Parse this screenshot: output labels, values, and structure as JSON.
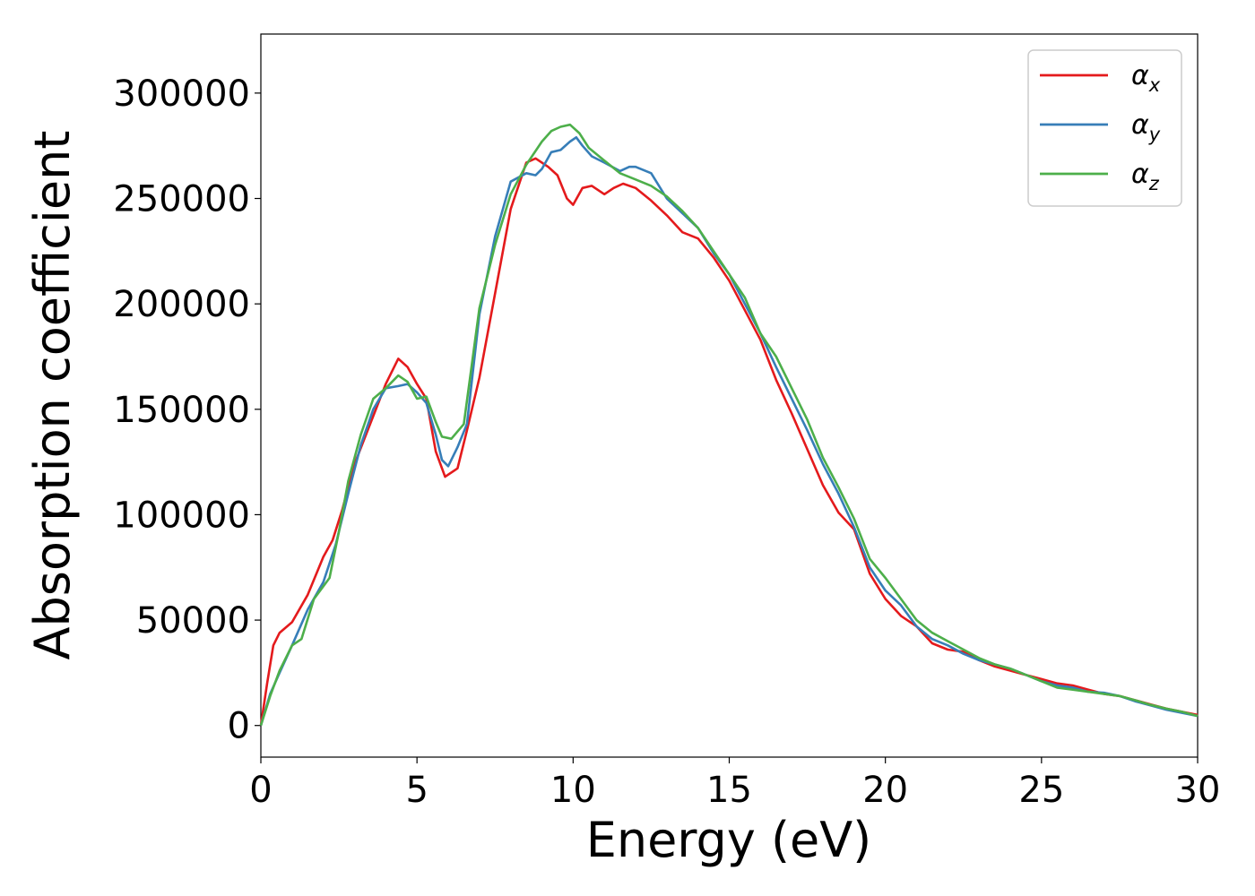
{
  "chart_data": {
    "type": "line",
    "xlabel": "Energy (eV)",
    "ylabel": "Absorption coefficient",
    "xlim": [
      0,
      30
    ],
    "ylim": [
      -15000,
      328000
    ],
    "xticks": [
      0,
      5,
      10,
      15,
      20,
      25,
      30
    ],
    "yticks": [
      0,
      50000,
      100000,
      150000,
      200000,
      250000,
      300000
    ],
    "grid": false,
    "legend_position": "top-right",
    "series": [
      {
        "name": "α",
        "subscript": "x",
        "color": "#e41a1c",
        "x": [
          0,
          0.2,
          0.4,
          0.6,
          1.0,
          1.5,
          2.0,
          2.3,
          2.6,
          3.0,
          3.5,
          4.0,
          4.4,
          4.7,
          5.0,
          5.3,
          5.6,
          5.9,
          6.3,
          6.6,
          7.0,
          7.5,
          8.0,
          8.5,
          8.8,
          9.2,
          9.5,
          9.8,
          10.0,
          10.3,
          10.6,
          11.0,
          11.3,
          11.6,
          12.0,
          12.5,
          13.0,
          13.5,
          14.0,
          14.5,
          15.0,
          15.5,
          16.0,
          16.5,
          17.0,
          17.5,
          18.0,
          18.5,
          19.0,
          19.5,
          20.0,
          20.5,
          21.0,
          21.5,
          22.0,
          22.5,
          23.0,
          23.5,
          24.0,
          24.5,
          25.0,
          25.5,
          26.0,
          26.5,
          27.0,
          27.5,
          28.0,
          28.5,
          29.0,
          29.5,
          30.0
        ],
        "y": [
          0,
          20000,
          38000,
          44000,
          49000,
          62000,
          80000,
          88000,
          102000,
          124000,
          143000,
          162000,
          174000,
          170000,
          162000,
          155000,
          130000,
          118000,
          122000,
          140000,
          165000,
          205000,
          245000,
          267000,
          269000,
          265000,
          261000,
          250000,
          247000,
          255000,
          256000,
          252000,
          255000,
          257000,
          255000,
          249000,
          242000,
          234000,
          231000,
          222000,
          211000,
          197000,
          183000,
          164000,
          148000,
          131000,
          114000,
          101000,
          93000,
          72000,
          60000,
          52000,
          47000,
          39000,
          36000,
          35000,
          31000,
          28000,
          26000,
          24000,
          22000,
          20000,
          19000,
          17000,
          15000,
          14000,
          12000,
          10000,
          8000,
          6500,
          5000
        ]
      },
      {
        "name": "α",
        "subscript": "y",
        "color": "#377eb8",
        "x": [
          0,
          0.3,
          0.6,
          1.0,
          1.5,
          2.0,
          2.4,
          2.8,
          3.2,
          3.6,
          4.0,
          4.4,
          4.7,
          5.0,
          5.3,
          5.6,
          5.8,
          6.0,
          6.3,
          6.6,
          7.0,
          7.5,
          8.0,
          8.5,
          8.8,
          9.0,
          9.3,
          9.6,
          9.9,
          10.1,
          10.3,
          10.6,
          11.0,
          11.5,
          11.8,
          12.0,
          12.5,
          13.0,
          13.5,
          14.0,
          14.5,
          15.0,
          15.5,
          16.0,
          16.5,
          17.0,
          17.5,
          18.0,
          18.5,
          19.0,
          19.5,
          20.0,
          20.5,
          21.0,
          21.5,
          22.0,
          22.5,
          23.0,
          23.5,
          24.0,
          24.5,
          25.0,
          25.5,
          26.0,
          26.5,
          27.0,
          27.5,
          28.0,
          28.5,
          29.0,
          29.5,
          30.0
        ],
        "y": [
          0,
          15000,
          25000,
          38000,
          55000,
          68000,
          86000,
          110000,
          133000,
          150000,
          160000,
          161000,
          162000,
          158000,
          153000,
          138000,
          126000,
          123000,
          132000,
          143000,
          195000,
          232000,
          258000,
          262000,
          261000,
          264000,
          272000,
          273000,
          277000,
          279000,
          275000,
          270000,
          267000,
          263000,
          265000,
          265000,
          262000,
          250000,
          243000,
          236000,
          224000,
          214000,
          200000,
          186000,
          170000,
          155000,
          140000,
          124000,
          110000,
          94000,
          75000,
          64000,
          57000,
          47000,
          41000,
          38000,
          34000,
          31000,
          29000,
          27000,
          24000,
          21000,
          19000,
          18000,
          16000,
          15500,
          14000,
          11500,
          9500,
          7500,
          6000,
          4500
        ]
      },
      {
        "name": "α",
        "subscript": "z",
        "color": "#4daf4a",
        "x": [
          0,
          0.3,
          0.6,
          1.0,
          1.3,
          1.7,
          2.0,
          2.2,
          2.5,
          2.8,
          3.2,
          3.6,
          4.0,
          4.4,
          4.7,
          5.0,
          5.3,
          5.6,
          5.8,
          6.1,
          6.5,
          7.0,
          7.5,
          8.0,
          8.5,
          9.0,
          9.3,
          9.6,
          9.9,
          10.2,
          10.5,
          11.0,
          11.5,
          12.0,
          12.5,
          13.0,
          13.5,
          14.0,
          14.5,
          15.0,
          15.5,
          16.0,
          16.5,
          17.0,
          17.5,
          18.0,
          18.5,
          19.0,
          19.5,
          20.0,
          20.5,
          21.0,
          21.5,
          22.0,
          22.5,
          23.0,
          23.5,
          24.0,
          24.5,
          25.0,
          25.5,
          26.0,
          26.5,
          27.0,
          27.5,
          28.0,
          28.5,
          29.0,
          29.5,
          30.0
        ],
        "y": [
          0,
          14000,
          26000,
          38000,
          41000,
          60000,
          66000,
          70000,
          92000,
          116000,
          138000,
          155000,
          160000,
          166000,
          163000,
          155000,
          156000,
          144000,
          137000,
          136000,
          143000,
          198000,
          228000,
          252000,
          266000,
          277000,
          282000,
          284000,
          285000,
          281000,
          274000,
          268000,
          262000,
          259000,
          256000,
          251000,
          244000,
          236000,
          225000,
          214000,
          203000,
          186000,
          175000,
          160000,
          145000,
          127000,
          113000,
          98000,
          79000,
          70000,
          60000,
          50000,
          44000,
          40000,
          36000,
          32000,
          29000,
          27000,
          24000,
          21000,
          18000,
          17000,
          16000,
          15000,
          14000,
          12000,
          9800,
          8000,
          6500,
          4500
        ]
      }
    ]
  }
}
